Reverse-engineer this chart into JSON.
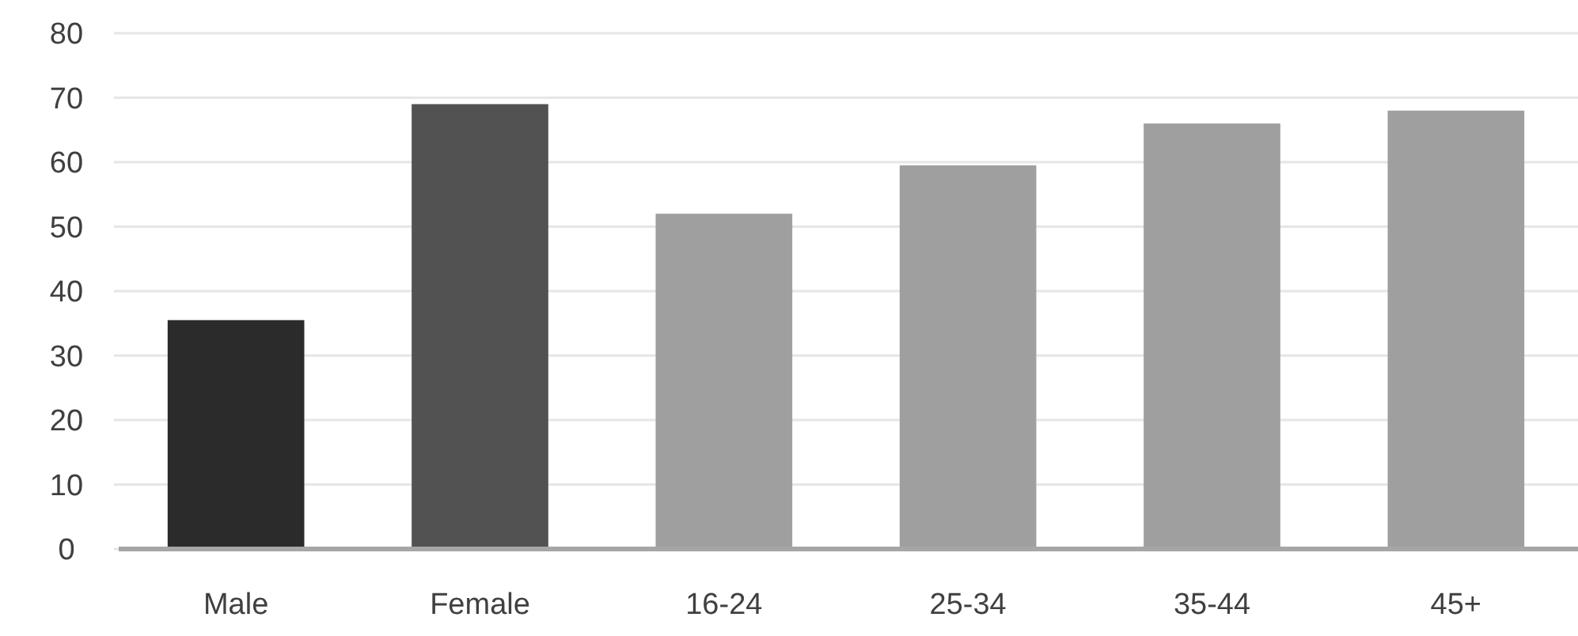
{
  "chart_data": {
    "type": "bar",
    "categories": [
      "Male",
      "Female",
      "16-24",
      "25-34",
      "35-44",
      "45+"
    ],
    "values": [
      35.5,
      69,
      52,
      59.5,
      66,
      68
    ],
    "colors": [
      "#2b2b2b",
      "#525252",
      "#9f9f9f",
      "#9f9f9f",
      "#9f9f9f",
      "#9f9f9f"
    ],
    "ylim": [
      0,
      80
    ],
    "yticks": [
      0,
      10,
      20,
      30,
      40,
      50,
      60,
      70,
      80
    ],
    "grid": "y"
  }
}
